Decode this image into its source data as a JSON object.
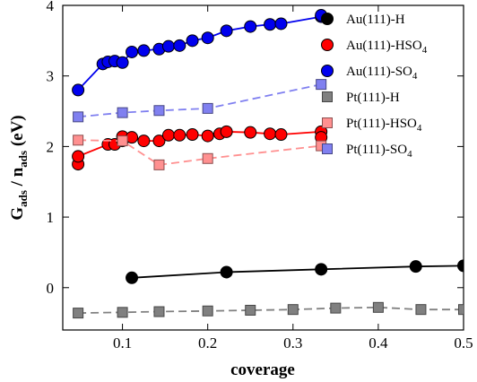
{
  "chart_data": {
    "type": "line",
    "title": "",
    "xlabel": "coverage",
    "ylabel": {
      "main": "G",
      "sub1": "ads",
      "mid": " / n",
      "sub2": "ads",
      "unit": " (eV)"
    },
    "xlim": [
      0.03,
      0.5
    ],
    "ylim": [
      -0.6,
      4.0
    ],
    "x_ticks": [
      0.1,
      0.2,
      0.3,
      0.4,
      0.5
    ],
    "x_tick_labels": [
      "0.1",
      "0.2",
      "0.3",
      "0.4",
      "0.5"
    ],
    "y_ticks": [
      0,
      1,
      2,
      3,
      4
    ],
    "y_tick_labels": [
      "0",
      "1",
      "2",
      "3",
      "4"
    ],
    "grid": false,
    "legend_position": "top-right",
    "series": [
      {
        "name": "Au(111)-H",
        "marker": "circle",
        "color": "#000000",
        "line": "solid",
        "points": [
          [
            0.111,
            0.14
          ],
          [
            0.222,
            0.22
          ],
          [
            0.333,
            0.26
          ],
          [
            0.444,
            0.3
          ],
          [
            0.5,
            0.31
          ]
        ]
      },
      {
        "name": "Au(111)-HSO4",
        "marker": "circle",
        "color": "#ff0000",
        "line": "solid",
        "points": [
          [
            0.048,
            1.75
          ],
          [
            0.048,
            1.86
          ],
          [
            0.083,
            2.03
          ],
          [
            0.091,
            2.03
          ],
          [
            0.1,
            2.08
          ],
          [
            0.1,
            2.14
          ],
          [
            0.111,
            2.13
          ],
          [
            0.125,
            2.08
          ],
          [
            0.143,
            2.08
          ],
          [
            0.154,
            2.16
          ],
          [
            0.167,
            2.16
          ],
          [
            0.182,
            2.17
          ],
          [
            0.2,
            2.15
          ],
          [
            0.214,
            2.18
          ],
          [
            0.222,
            2.21
          ],
          [
            0.25,
            2.2
          ],
          [
            0.273,
            2.18
          ],
          [
            0.286,
            2.17
          ],
          [
            0.333,
            2.21
          ],
          [
            0.333,
            2.13
          ]
        ]
      },
      {
        "name": "Au(111)-SO4",
        "marker": "circle",
        "color": "#0000ee",
        "line": "solid",
        "points": [
          [
            0.048,
            2.8
          ],
          [
            0.077,
            3.17
          ],
          [
            0.083,
            3.2
          ],
          [
            0.091,
            3.21
          ],
          [
            0.1,
            3.19
          ],
          [
            0.111,
            3.34
          ],
          [
            0.125,
            3.36
          ],
          [
            0.143,
            3.38
          ],
          [
            0.154,
            3.42
          ],
          [
            0.167,
            3.43
          ],
          [
            0.182,
            3.5
          ],
          [
            0.2,
            3.54
          ],
          [
            0.222,
            3.64
          ],
          [
            0.25,
            3.7
          ],
          [
            0.273,
            3.73
          ],
          [
            0.286,
            3.74
          ],
          [
            0.333,
            3.84
          ],
          [
            0.333,
            3.86
          ]
        ]
      },
      {
        "name": "Pt(111)-H",
        "marker": "square",
        "color": "#808080",
        "line": "dashed",
        "points": [
          [
            0.048,
            -0.36
          ],
          [
            0.1,
            -0.35
          ],
          [
            0.143,
            -0.34
          ],
          [
            0.2,
            -0.33
          ],
          [
            0.25,
            -0.32
          ],
          [
            0.3,
            -0.31
          ],
          [
            0.35,
            -0.29
          ],
          [
            0.4,
            -0.28
          ],
          [
            0.45,
            -0.31
          ],
          [
            0.5,
            -0.31
          ]
        ]
      },
      {
        "name": "Pt(111)-HSO4",
        "marker": "square",
        "color": "#ff9090",
        "line": "dashed",
        "points": [
          [
            0.048,
            2.09
          ],
          [
            0.1,
            2.08
          ],
          [
            0.143,
            1.74
          ],
          [
            0.2,
            1.83
          ],
          [
            0.333,
            2.01
          ]
        ]
      },
      {
        "name": "Pt(111)-SO4",
        "marker": "square",
        "color": "#8080f0",
        "line": "dashed",
        "points": [
          [
            0.048,
            2.42
          ],
          [
            0.1,
            2.48
          ],
          [
            0.143,
            2.51
          ],
          [
            0.2,
            2.54
          ],
          [
            0.333,
            2.88
          ]
        ]
      }
    ]
  }
}
